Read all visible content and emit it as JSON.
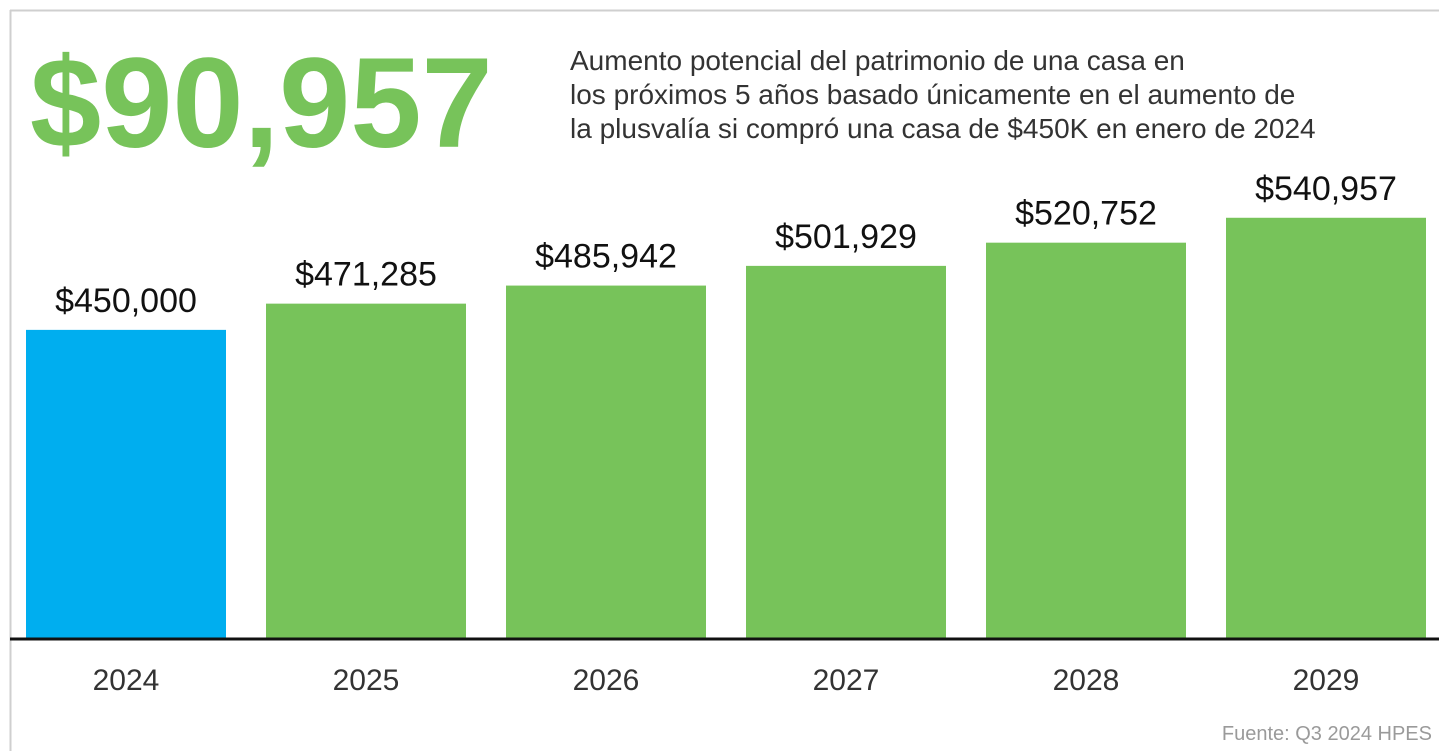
{
  "chart_data": {
    "type": "bar",
    "title": "$90,957",
    "subtitle": [
      "Aumento potencial del patrimonio de una casa en",
      "los próximos 5 años basado únicamente en el aumento de",
      "la plusvalía si compró una casa de $450K en enero de 2024"
    ],
    "categories": [
      "2024",
      "2025",
      "2026",
      "2027",
      "2028",
      "2029"
    ],
    "values": [
      450000,
      471285,
      485942,
      501929,
      520752,
      540957
    ],
    "value_labels": [
      "$450,000",
      "$471,285",
      "$485,942",
      "$501,929",
      "$520,752",
      "$540,957"
    ],
    "colors": [
      "#00aeef",
      "#77c35a",
      "#77c35a",
      "#77c35a",
      "#77c35a",
      "#77c35a"
    ],
    "title_color": "#77c35a",
    "ylim": [
      200000,
      600000
    ],
    "source": "Fuente: Q3 2024 HPES"
  }
}
